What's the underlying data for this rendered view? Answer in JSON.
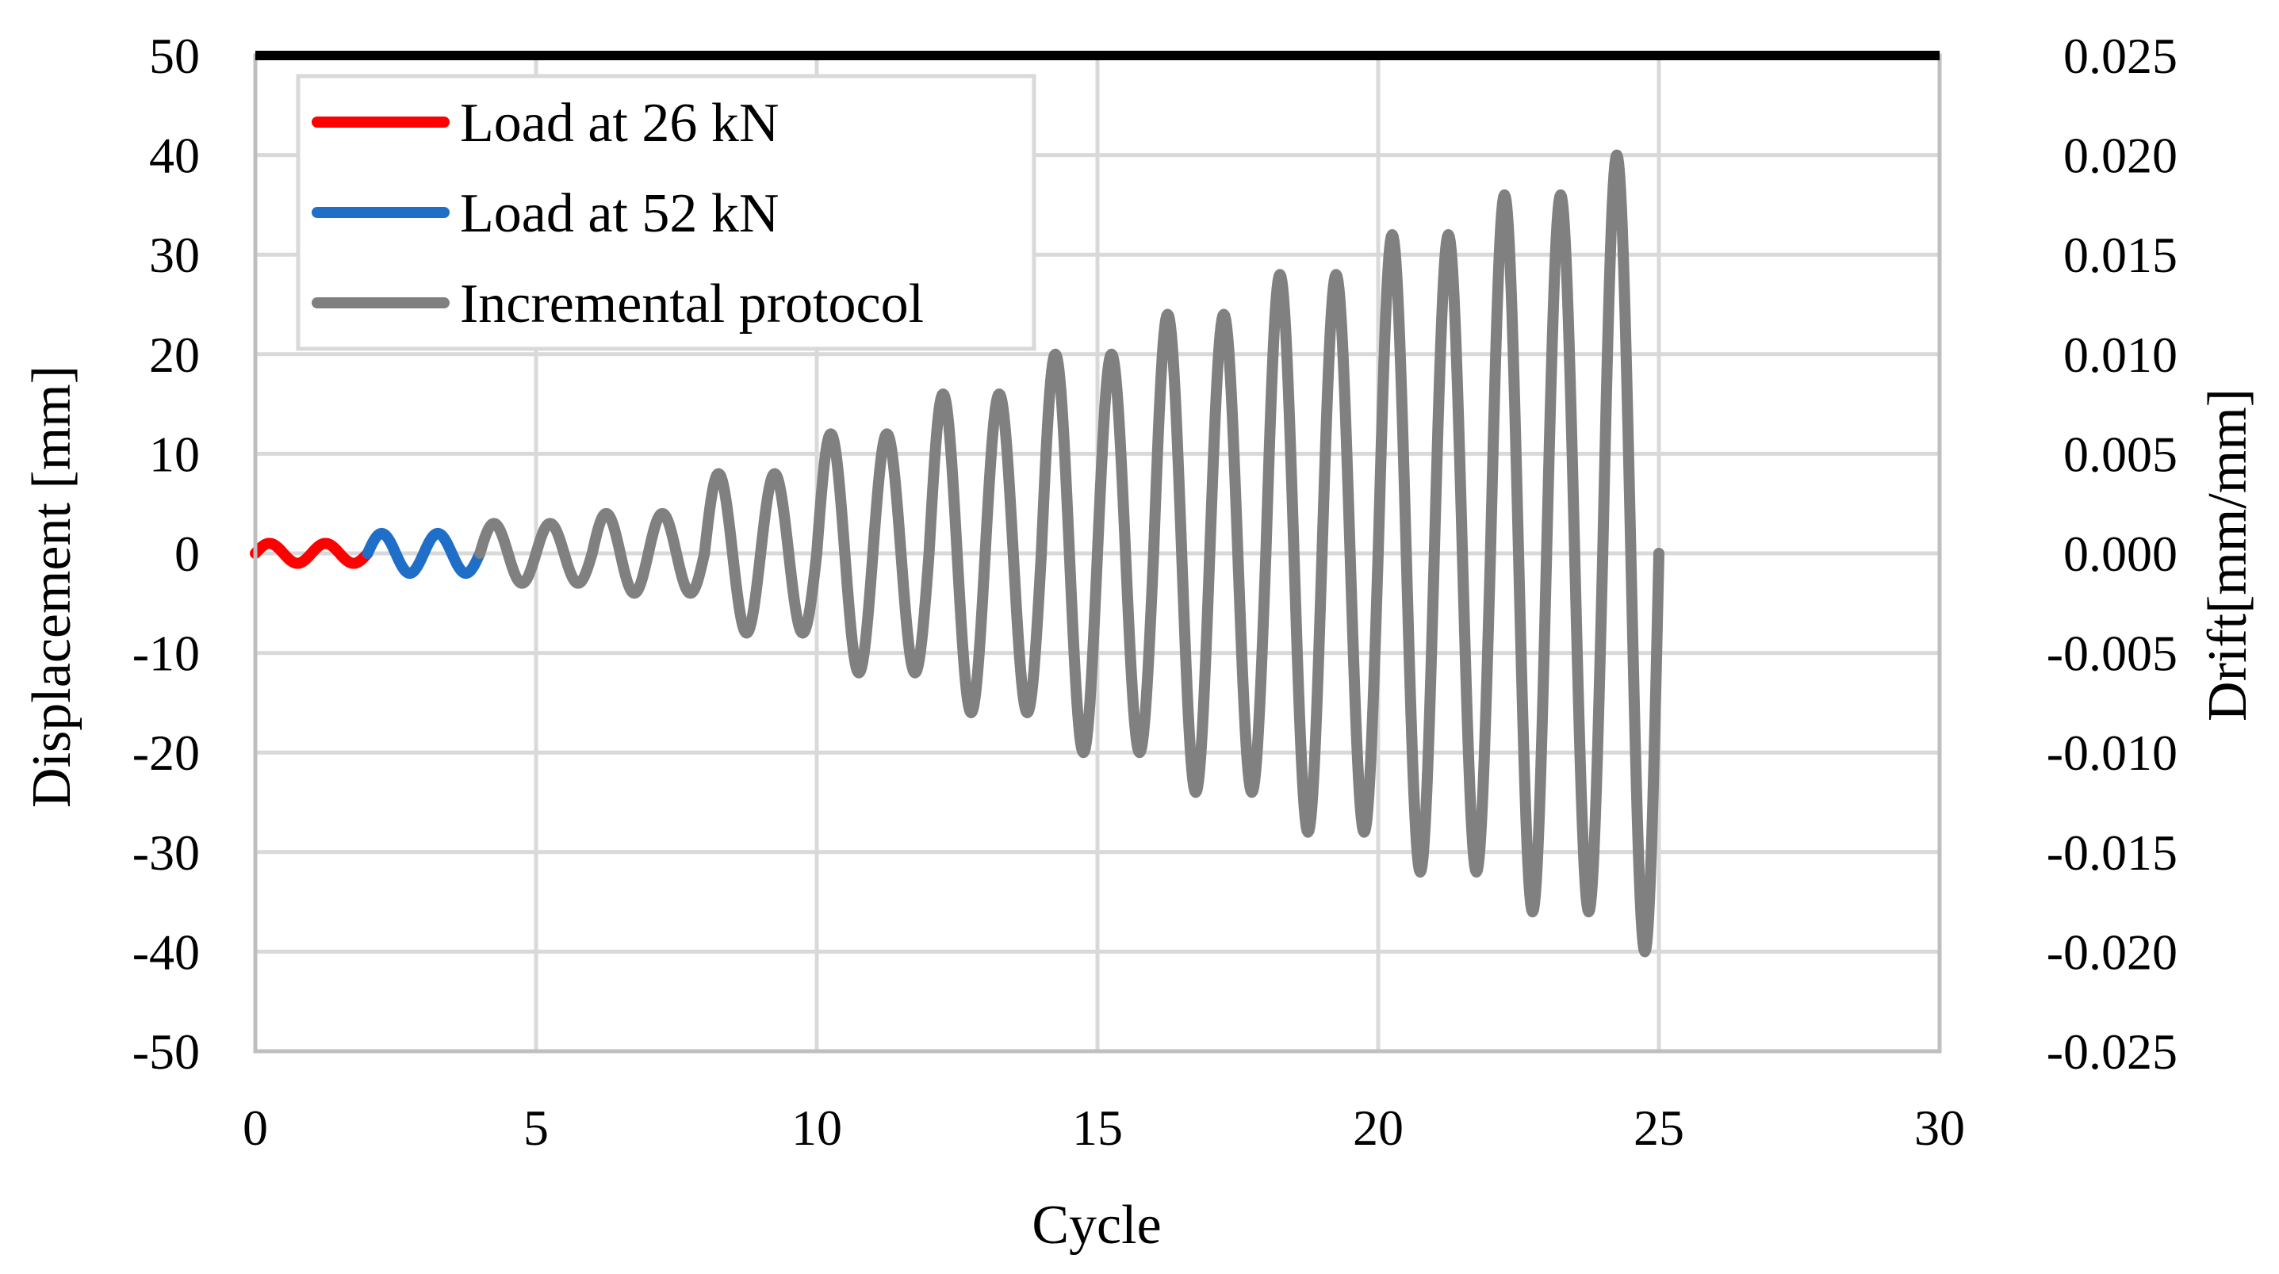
{
  "chart_data": {
    "type": "line",
    "xlabel": "Cycle",
    "ylabel": "Displacement [mm]",
    "y2label": "Drift[mm/mm]",
    "xlim": [
      0,
      30
    ],
    "ylim": [
      -50,
      50
    ],
    "y2lim": [
      -0.025,
      0.025
    ],
    "xticks": [
      "0",
      "5",
      "10",
      "15",
      "20",
      "25",
      "30"
    ],
    "yticks": [
      "50",
      "40",
      "30",
      "20",
      "10",
      "0",
      "-10",
      "-20",
      "-30",
      "-40",
      "-50"
    ],
    "y2ticks": [
      "0.025",
      "0.020",
      "0.015",
      "0.010",
      "0.005",
      "0.000",
      "-0.005",
      "-0.010",
      "-0.015",
      "-0.020",
      "-0.025"
    ],
    "grid": true,
    "legend_position": "top-left",
    "series": [
      {
        "name": "Load at 26 kN",
        "color": "#ff0000",
        "description": "sinusoid, 2 cycles, amplitude 1 mm, x 0 to 2",
        "x_start": 0,
        "x_end": 2,
        "cycle_amplitudes": [
          1,
          1
        ]
      },
      {
        "name": "Load at 52 kN",
        "color": "#1f6fc8",
        "description": "sinusoid, 2 cycles, amplitude 2 mm, x 2 to 4",
        "x_start": 2,
        "x_end": 4,
        "cycle_amplitudes": [
          2,
          2
        ]
      },
      {
        "name": "Incremental protocol",
        "color": "#808080",
        "description": "sinusoid, 21 cycles, amplitude increasing in pairs, x 4 to 25",
        "x_start": 4,
        "x_end": 25,
        "cycle_amplitudes": [
          3,
          3,
          4,
          4,
          8,
          8,
          12,
          12,
          16,
          16,
          20,
          20,
          24,
          24,
          28,
          28,
          32,
          32,
          36,
          36,
          40
        ]
      }
    ]
  }
}
